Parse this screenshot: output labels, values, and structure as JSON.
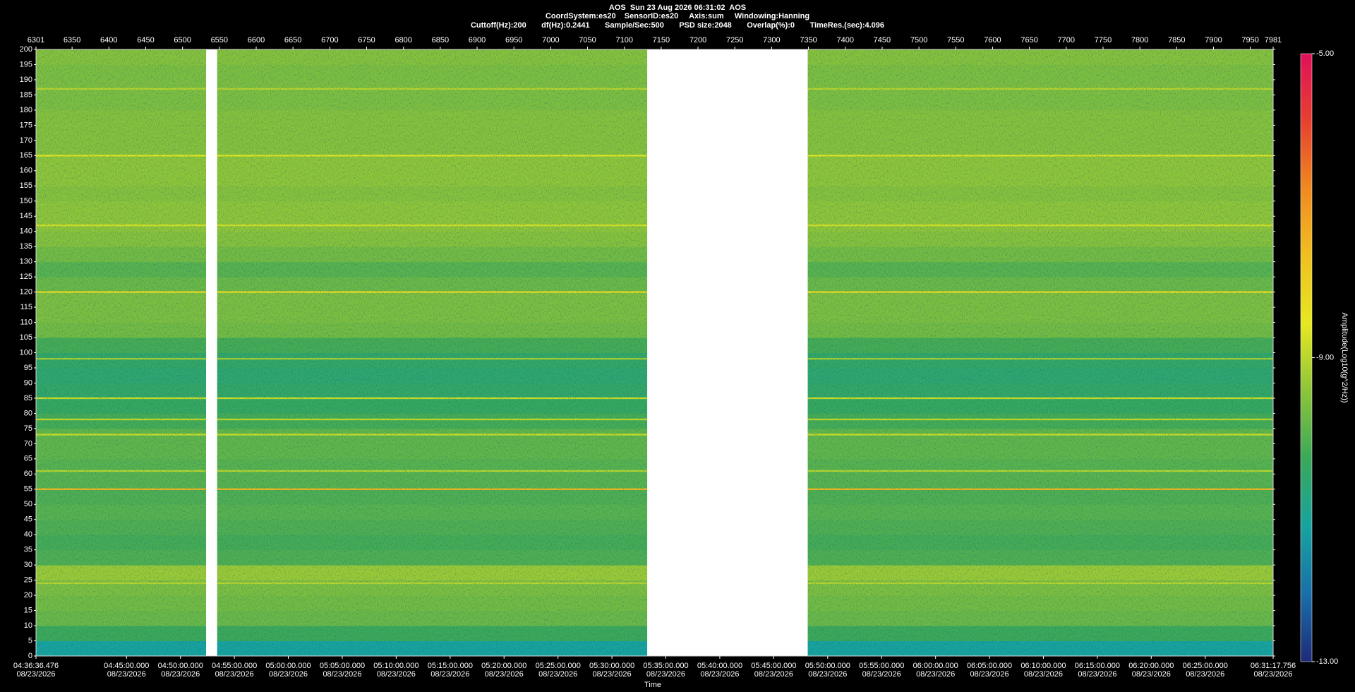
{
  "header": [
    "AOS  Sun 23 Aug 2026 06:31:02  AOS",
    "CoordSystem:es20    SensorID:es20     Axis:sum     Windowing:Hanning",
    "Cuttoff(Hz):200       df(Hz):0.2441       Sample/Sec:500       PSD size:2048       Overlap(%):0       TimeRes.(sec):4.096"
  ],
  "chart_data": {
    "type": "heatmap",
    "xlim": [
      6301,
      7981
    ],
    "xticks": [
      6301,
      6350,
      6400,
      6450,
      6500,
      6550,
      6600,
      6650,
      6700,
      6750,
      6800,
      6850,
      6900,
      6950,
      7000,
      7050,
      7100,
      7150,
      7200,
      7250,
      7300,
      7350,
      7400,
      7450,
      7500,
      7550,
      7600,
      7650,
      7700,
      7750,
      7800,
      7850,
      7900,
      7950,
      7981
    ],
    "ylim": [
      0,
      200
    ],
    "yticks": [
      0,
      5,
      10,
      15,
      20,
      25,
      30,
      35,
      40,
      45,
      50,
      55,
      60,
      65,
      70,
      75,
      80,
      85,
      90,
      95,
      100,
      105,
      110,
      115,
      120,
      125,
      130,
      135,
      140,
      145,
      150,
      155,
      160,
      165,
      170,
      175,
      180,
      185,
      190,
      195,
      200
    ],
    "time_ticks": [
      {
        "value": 6301,
        "label": "04:36:36.476"
      },
      {
        "value": 6423.9,
        "label": "04:45:00.000"
      },
      {
        "value": 6497.2,
        "label": "04:50:00.000"
      },
      {
        "value": 6570.4,
        "label": "04:55:00.000"
      },
      {
        "value": 6643.6,
        "label": "05:00:00.000"
      },
      {
        "value": 6716.9,
        "label": "05:05:00.000"
      },
      {
        "value": 6790.1,
        "label": "05:10:00.000"
      },
      {
        "value": 6863.4,
        "label": "05:15:00.000"
      },
      {
        "value": 6936.6,
        "label": "05:20:00.000"
      },
      {
        "value": 7009.9,
        "label": "05:25:00.000"
      },
      {
        "value": 7083.1,
        "label": "05:30:00.000"
      },
      {
        "value": 7156.3,
        "label": "05:35:00.000"
      },
      {
        "value": 7229.6,
        "label": "05:40:00.000"
      },
      {
        "value": 7302.8,
        "label": "05:45:00.000"
      },
      {
        "value": 7376.1,
        "label": "05:50:00.000"
      },
      {
        "value": 7449.3,
        "label": "05:55:00.000"
      },
      {
        "value": 7522.6,
        "label": "06:00:00.000"
      },
      {
        "value": 7595.8,
        "label": "06:05:00.000"
      },
      {
        "value": 7669.0,
        "label": "06:10:00.000"
      },
      {
        "value": 7742.3,
        "label": "06:15:00.000"
      },
      {
        "value": 7815.5,
        "label": "06:20:00.000"
      },
      {
        "value": 7888.8,
        "label": "06:25:00.000"
      },
      {
        "value": 7981,
        "label": "06:31:17.756"
      }
    ],
    "time_tick_dates": [
      "08/23/2026",
      "08/23/2026",
      "08/23/2026",
      "08/23/2026",
      "08/23/2026",
      "08/23/2026",
      "08/23/2026",
      "08/23/2026",
      "08/23/2026",
      "08/23/2026",
      "08/23/2026",
      "08/23/2026",
      "08/23/2026",
      "08/23/2026",
      "08/23/2026",
      "08/23/2026",
      "08/23/2026",
      "08/23/2026",
      "08/23/2026",
      "08/23/2026",
      "08/23/2026",
      "08/23/2026",
      "08/23/2026"
    ],
    "xlabel": "Time",
    "segments": [
      [
        6301,
        6532
      ],
      [
        6547,
        7131
      ],
      [
        7349,
        7981
      ]
    ],
    "y_bins": [
      0,
      5,
      10,
      15,
      20,
      25,
      30,
      35,
      40,
      45,
      50,
      55,
      60,
      65,
      70,
      75,
      80,
      85,
      90,
      95,
      100,
      105,
      110,
      115,
      120,
      125,
      130,
      135,
      140,
      145,
      150,
      155,
      160,
      165,
      170,
      175,
      180,
      185,
      190,
      195,
      200
    ],
    "values": [
      -11.2,
      -10.3,
      -9.8,
      -9.7,
      -9.6,
      -9.3,
      -10.1,
      -10.2,
      -10.1,
      -10.0,
      -10.1,
      -10.0,
      -10.0,
      -9.9,
      -9.9,
      -10.2,
      -10.4,
      -10.5,
      -10.6,
      -10.5,
      -10.2,
      -9.7,
      -9.6,
      -9.6,
      -9.8,
      -10.0,
      -9.7,
      -9.5,
      -9.4,
      -9.4,
      -9.5,
      -9.4,
      -9.4,
      -9.5,
      -9.5,
      -9.5,
      -9.6,
      -9.6,
      -9.6,
      -9.5
    ],
    "tones": [
      {
        "freq": 187,
        "amplitude": -9.0
      },
      {
        "freq": 165,
        "amplitude": -8.6
      },
      {
        "freq": 142,
        "amplitude": -8.7
      },
      {
        "freq": 120,
        "amplitude": -8.3
      },
      {
        "freq": 98,
        "amplitude": -9.2
      },
      {
        "freq": 85,
        "amplitude": -8.8
      },
      {
        "freq": 78,
        "amplitude": -8.9
      },
      {
        "freq": 73,
        "amplitude": -8.8
      },
      {
        "freq": 61,
        "amplitude": -9.0
      },
      {
        "freq": 55,
        "amplitude": -7.5
      },
      {
        "freq": 24,
        "amplitude": -9.0
      }
    ],
    "colorbar": {
      "zlim": [
        -13,
        -5
      ],
      "ticks": [
        {
          "value": -5,
          "label": "-5.00"
        },
        {
          "value": -9,
          "label": "-9.00"
        },
        {
          "value": -13,
          "label": "-13.00"
        }
      ],
      "label": "Amplitude(Log10(g^2/Hz))",
      "colors": [
        "#1e2a78",
        "#1a6fa8",
        "#18a3a0",
        "#3aa85a",
        "#8cc43a",
        "#e6e820",
        "#f0c020",
        "#f08a20",
        "#e84030",
        "#e0105a"
      ]
    }
  }
}
